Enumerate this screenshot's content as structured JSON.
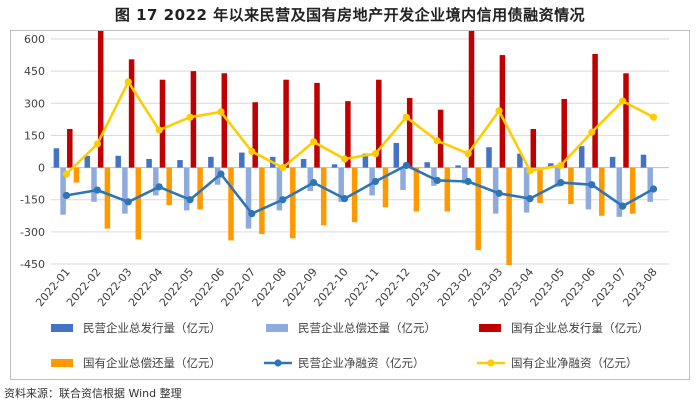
{
  "figure": {
    "title": "图 17    2022 年以来民营及国有房地产开发企业境内信用债融资情况",
    "source": "资料来源：联合资信根据 Wind 整理"
  },
  "colors": {
    "s1": "#4472C4",
    "s2": "#8FAADC",
    "s3": "#C00000",
    "s4": "#FF9900",
    "s5": "#2E75B6",
    "s6": "#FFCC00",
    "grid": "#D9D9D9",
    "axis": "#BFBFBF",
    "text": "#404040"
  },
  "chart_data": {
    "type": "bar",
    "title": "",
    "xlabel": "",
    "ylabel": "",
    "ylim": [
      -450,
      600
    ],
    "yticks": [
      -450,
      -300,
      -150,
      0,
      150,
      300,
      450,
      600
    ],
    "yticklabels": [
      "-450",
      "-300",
      "-150",
      "0",
      "150",
      "300",
      "450",
      "600"
    ],
    "grid": true,
    "legend_position": "bottom",
    "categories": [
      "2022-01",
      "2022-02",
      "2022-03",
      "2022-04",
      "2022-05",
      "2022-06",
      "2022-07",
      "2022-08",
      "2022-09",
      "2022-10",
      "2022-11",
      "2022-12",
      "2023-01",
      "2023-02",
      "2023-03",
      "2023-04",
      "2023-05",
      "2023-06",
      "2023-07",
      "2023-08"
    ],
    "series": [
      {
        "name": "民营企业总发行量（亿元）",
        "kind": "bar",
        "color_key": "s1",
        "values": [
          90,
          55,
          55,
          40,
          35,
          50,
          70,
          50,
          40,
          15,
          65,
          115,
          25,
          10,
          95,
          65,
          20,
          100,
          50,
          60
        ]
      },
      {
        "name": "民营企业总偿还量（亿元）",
        "kind": "bar",
        "color_key": "s2",
        "values": [
          -220,
          -160,
          -215,
          -130,
          -200,
          -80,
          -285,
          -200,
          -110,
          -160,
          -130,
          -105,
          -85,
          -75,
          -215,
          -210,
          -90,
          -195,
          -230,
          -160
        ]
      },
      {
        "name": "国有企业总发行量（亿元）",
        "kind": "bar",
        "color_key": "s3",
        "values": [
          180,
          675,
          505,
          410,
          450,
          440,
          305,
          410,
          395,
          310,
          410,
          325,
          270,
          650,
          525,
          180,
          320,
          530,
          440,
          0
        ]
      },
      {
        "name": "国有企业总偿还量（亿元）",
        "kind": "bar",
        "color_key": "s4",
        "values": [
          -70,
          -285,
          -335,
          -175,
          -195,
          -340,
          -310,
          -330,
          -270,
          -255,
          -185,
          -205,
          -205,
          -385,
          -455,
          -165,
          -170,
          -225,
          -215,
          0
        ]
      },
      {
        "name": "民营企业净融资（亿元）",
        "kind": "line",
        "color_key": "s5",
        "values": [
          -130,
          -105,
          -160,
          -90,
          -150,
          -30,
          -215,
          -150,
          -70,
          -145,
          -65,
          10,
          -60,
          -65,
          -120,
          -145,
          -70,
          -80,
          -180,
          -100
        ]
      },
      {
        "name": "国有企业净融资（亿元）",
        "kind": "line",
        "color_key": "s6",
        "values": [
          -30,
          110,
          400,
          175,
          235,
          260,
          75,
          0,
          120,
          40,
          65,
          235,
          125,
          65,
          265,
          -15,
          10,
          165,
          310,
          235
        ]
      }
    ]
  }
}
